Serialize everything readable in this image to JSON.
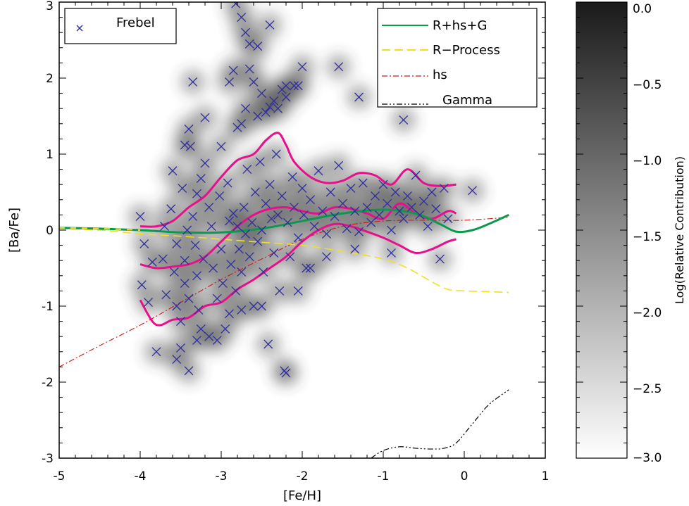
{
  "chart_data": {
    "type": "scatter",
    "xlabel": "[Fe/H]",
    "ylabel": "[Ba/Fe]",
    "xlim": [
      -5,
      1
    ],
    "ylim": [
      -3,
      3
    ],
    "x_ticks": [
      "-5",
      "-4",
      "-3",
      "-2",
      "-1",
      "0",
      "1"
    ],
    "y_ticks": [
      "-3",
      "-2",
      "-1",
      "0",
      "1",
      "2",
      "3"
    ],
    "grid": false,
    "legend_left": {
      "placement": "top-left",
      "entries": [
        "Frebel"
      ]
    },
    "legend_right": {
      "placement": "top-right",
      "entries": [
        "R+hs+G",
        "R−Process",
        "hs",
        "Gamma"
      ]
    },
    "colors": {
      "frebel": "#2e2e9e",
      "r_hs_g": "#0a9a4e",
      "r_process": "#f0e020",
      "hs": "#d01818",
      "gamma": "#000000",
      "envelope": "#e8108a"
    },
    "colorbar": {
      "label": "Log(Relative Contribution)",
      "range": [
        -3.0,
        0.0
      ],
      "ticks": [
        "0.0",
        "−0.5",
        "−1.0",
        "−1.5",
        "−2.0",
        "−2.5",
        "−3.0"
      ]
    },
    "series": [
      {
        "name": "Frebel",
        "style": "x-markers",
        "points": [
          [
            -4.0,
            0.18
          ],
          [
            -3.95,
            -0.18
          ],
          [
            -3.98,
            -0.72
          ],
          [
            -3.9,
            -0.95
          ],
          [
            -3.85,
            -0.42
          ],
          [
            -3.7,
            0.05
          ],
          [
            -3.72,
            -0.38
          ],
          [
            -3.68,
            -0.85
          ],
          [
            -3.6,
            0.78
          ],
          [
            -3.62,
            0.28
          ],
          [
            -3.55,
            -0.18
          ],
          [
            -3.58,
            -0.55
          ],
          [
            -3.55,
            -1.0
          ],
          [
            -3.5,
            -1.2
          ],
          [
            -3.45,
            -0.7
          ],
          [
            -3.48,
            0.55
          ],
          [
            -3.42,
            0.0
          ],
          [
            -3.45,
            -0.4
          ],
          [
            -3.4,
            -0.9
          ],
          [
            -3.4,
            1.33
          ],
          [
            -3.45,
            1.12
          ],
          [
            -3.38,
            1.1
          ],
          [
            -3.35,
            0.18
          ],
          [
            -3.32,
            -0.2
          ],
          [
            -3.3,
            -0.6
          ],
          [
            -3.28,
            -1.05
          ],
          [
            -3.25,
            -1.3
          ],
          [
            -3.3,
            0.48
          ],
          [
            -3.25,
            0.68
          ],
          [
            -3.22,
            -0.38
          ],
          [
            -3.2,
            0.88
          ],
          [
            -3.15,
            0.3
          ],
          [
            -3.12,
            0.05
          ],
          [
            -3.1,
            -0.5
          ],
          [
            -3.05,
            -0.9
          ],
          [
            -3.0,
            1.1
          ],
          [
            -3.02,
            0.45
          ],
          [
            -3.0,
            -0.25
          ],
          [
            -2.98,
            -0.7
          ],
          [
            -2.95,
            -1.3
          ],
          [
            -2.92,
            0.62
          ],
          [
            -2.9,
            0.12
          ],
          [
            -2.88,
            -0.45
          ],
          [
            -2.85,
            0.22
          ],
          [
            -2.82,
            -0.8
          ],
          [
            -2.8,
            0.05
          ],
          [
            -2.78,
            -0.25
          ],
          [
            -2.75,
            -0.55
          ],
          [
            -2.72,
            0.3
          ],
          [
            -2.7,
            -0.05
          ],
          [
            -2.68,
            0.8
          ],
          [
            -2.65,
            -0.35
          ],
          [
            -2.62,
            0.1
          ],
          [
            -2.6,
            -1.0
          ],
          [
            -2.58,
            0.5
          ],
          [
            -2.55,
            -0.15
          ],
          [
            -2.52,
            0.9
          ],
          [
            -2.5,
            0.0
          ],
          [
            -2.48,
            -0.55
          ],
          [
            -2.45,
            0.35
          ],
          [
            -2.42,
            -1.5
          ],
          [
            -2.4,
            0.6
          ],
          [
            -2.38,
            0.15
          ],
          [
            -2.35,
            -0.3
          ],
          [
            -2.32,
            1.0
          ],
          [
            -2.3,
            0.2
          ],
          [
            -2.28,
            -0.8
          ],
          [
            -2.25,
            0.45
          ],
          [
            -2.22,
            -1.85
          ],
          [
            -2.2,
            -1.88
          ],
          [
            -2.18,
            0.1
          ],
          [
            -2.15,
            -0.35
          ],
          [
            -2.12,
            0.7
          ],
          [
            -2.1,
            0.3
          ],
          [
            -2.05,
            -0.1
          ],
          [
            -2.0,
            0.55
          ],
          [
            -1.98,
            0.2
          ],
          [
            -1.95,
            -0.5
          ],
          [
            -1.9,
            0.4
          ],
          [
            -1.85,
            0.05
          ],
          [
            -1.8,
            0.78
          ],
          [
            -1.75,
            0.25
          ],
          [
            -1.7,
            -0.05
          ],
          [
            -1.65,
            0.5
          ],
          [
            -1.6,
            0.18
          ],
          [
            -1.55,
            0.85
          ],
          [
            -1.5,
            0.35
          ],
          [
            -1.45,
            0.02
          ],
          [
            -1.4,
            0.55
          ],
          [
            -1.35,
            0.25
          ],
          [
            -1.3,
            -0.02
          ],
          [
            -1.25,
            0.62
          ],
          [
            -1.2,
            0.3
          ],
          [
            -1.15,
            0.1
          ],
          [
            -1.1,
            0.45
          ],
          [
            -1.05,
            0.2
          ],
          [
            -1.0,
            0.6
          ],
          [
            -0.95,
            0.35
          ],
          [
            -0.9,
            0.0
          ],
          [
            -0.85,
            0.5
          ],
          [
            -0.8,
            0.25
          ],
          [
            -0.75,
            0.15
          ],
          [
            -0.7,
            0.45
          ],
          [
            -0.65,
            0.3
          ],
          [
            -0.6,
            0.72
          ],
          [
            -0.55,
            0.2
          ],
          [
            -0.5,
            0.38
          ],
          [
            -0.45,
            0.05
          ],
          [
            -0.4,
            0.5
          ],
          [
            -0.35,
            0.28
          ],
          [
            -0.3,
            -0.38
          ],
          [
            -0.25,
            0.55
          ],
          [
            -0.2,
            0.15
          ],
          [
            0.1,
            0.52
          ],
          [
            -2.82,
            2.98
          ],
          [
            -2.75,
            2.8
          ],
          [
            -2.65,
            2.45
          ],
          [
            -2.55,
            2.42
          ],
          [
            -2.4,
            2.7
          ],
          [
            -2.7,
            2.6
          ],
          [
            -2.85,
            2.1
          ],
          [
            -2.6,
            1.95
          ],
          [
            -2.5,
            1.8
          ],
          [
            -2.35,
            1.7
          ],
          [
            -2.25,
            1.85
          ],
          [
            -2.3,
            1.6
          ],
          [
            -2.45,
            1.55
          ],
          [
            -2.55,
            1.5
          ],
          [
            -2.7,
            1.6
          ],
          [
            -2.8,
            1.35
          ],
          [
            -2.75,
            1.4
          ],
          [
            -2.2,
            1.75
          ],
          [
            -2.0,
            2.15
          ],
          [
            -2.1,
            1.9
          ],
          [
            -1.3,
            1.75
          ],
          [
            -1.55,
            2.15
          ],
          [
            -0.75,
            1.45
          ],
          [
            -3.35,
            1.95
          ],
          [
            -3.2,
            1.48
          ],
          [
            -2.9,
            1.95
          ],
          [
            -2.65,
            2.12
          ],
          [
            -2.4,
            1.62
          ],
          [
            -2.2,
            1.9
          ],
          [
            -2.05,
            1.9
          ],
          [
            -3.8,
            -1.6
          ],
          [
            -3.55,
            -1.7
          ],
          [
            -3.5,
            -1.55
          ],
          [
            -3.4,
            -1.85
          ],
          [
            -3.3,
            -1.45
          ],
          [
            -3.15,
            -1.4
          ],
          [
            -3.05,
            -1.45
          ],
          [
            -2.9,
            -1.1
          ],
          [
            -2.75,
            -1.05
          ],
          [
            -2.5,
            -1.0
          ],
          [
            -1.9,
            -0.5
          ],
          [
            -2.05,
            -0.8
          ],
          [
            -1.7,
            -0.35
          ],
          [
            -1.35,
            -0.25
          ],
          [
            -0.9,
            -0.3
          ]
        ]
      },
      {
        "name": "R+hs+G",
        "style": "solid",
        "x": [
          -5.0,
          -4.5,
          -4.0,
          -3.5,
          -3.0,
          -2.5,
          -2.0,
          -1.5,
          -1.0,
          -0.6,
          -0.3,
          -0.1,
          0.1,
          0.3,
          0.55
        ],
        "y": [
          0.03,
          0.02,
          0.0,
          -0.03,
          -0.03,
          0.02,
          0.12,
          0.22,
          0.27,
          0.22,
          0.08,
          -0.02,
          0.0,
          0.08,
          0.2
        ]
      },
      {
        "name": "R−Process",
        "style": "dashed",
        "x": [
          -5.0,
          -4.5,
          -4.0,
          -3.5,
          -3.0,
          -2.5,
          -2.0,
          -1.5,
          -1.0,
          -0.7,
          -0.4,
          -0.2,
          0.0,
          0.3,
          0.55
        ],
        "y": [
          0.02,
          0.0,
          -0.05,
          -0.08,
          -0.12,
          -0.16,
          -0.2,
          -0.28,
          -0.38,
          -0.5,
          -0.68,
          -0.78,
          -0.8,
          -0.81,
          -0.82
        ]
      },
      {
        "name": "hs",
        "style": "dash-dot",
        "x": [
          -5.0,
          -4.5,
          -4.0,
          -3.5,
          -3.0,
          -2.5,
          -2.0,
          -1.5,
          -1.0,
          -0.5,
          0.0,
          0.55
        ],
        "y": [
          -1.8,
          -1.52,
          -1.25,
          -0.95,
          -0.65,
          -0.38,
          -0.12,
          0.05,
          0.12,
          0.13,
          0.13,
          0.17
        ]
      },
      {
        "name": "Gamma",
        "style": "dash-dot-dot",
        "x": [
          -1.15,
          -1.0,
          -0.8,
          -0.6,
          -0.4,
          -0.25,
          -0.1,
          0.1,
          0.3,
          0.55
        ],
        "y": [
          -3.0,
          -2.9,
          -2.85,
          -2.87,
          -2.88,
          -2.87,
          -2.8,
          -2.55,
          -2.3,
          -2.1
        ]
      },
      {
        "name": "",
        "style": "envelope-upper",
        "x": [
          -4.0,
          -3.8,
          -3.6,
          -3.4,
          -3.2,
          -3.0,
          -2.8,
          -2.6,
          -2.45,
          -2.3,
          -2.2,
          -2.1,
          -1.9,
          -1.7,
          -1.5,
          -1.3,
          -1.1,
          -0.9,
          -0.7,
          -0.5,
          -0.3,
          -0.1
        ],
        "y": [
          0.05,
          0.05,
          0.12,
          0.3,
          0.45,
          0.7,
          0.92,
          1.0,
          1.18,
          1.28,
          1.12,
          0.9,
          0.7,
          0.62,
          0.65,
          0.75,
          0.72,
          0.6,
          0.8,
          0.62,
          0.58,
          0.6
        ]
      },
      {
        "name": "",
        "style": "envelope-middle",
        "x": [
          -4.0,
          -3.8,
          -3.6,
          -3.4,
          -3.2,
          -3.0,
          -2.8,
          -2.6,
          -2.4,
          -2.2,
          -2.0,
          -1.8,
          -1.6,
          -1.4,
          -1.2,
          -1.0,
          -0.8,
          -0.6,
          -0.4,
          -0.2,
          -0.1
        ],
        "y": [
          -0.45,
          -0.5,
          -0.48,
          -0.45,
          -0.35,
          -0.15,
          0.05,
          0.2,
          0.28,
          0.3,
          0.25,
          0.22,
          0.3,
          0.28,
          0.22,
          0.15,
          0.35,
          0.22,
          0.15,
          0.25,
          0.22
        ]
      },
      {
        "name": "",
        "style": "envelope-lower",
        "x": [
          -4.0,
          -3.85,
          -3.75,
          -3.6,
          -3.4,
          -3.2,
          -3.0,
          -2.8,
          -2.6,
          -2.4,
          -2.2,
          -2.0,
          -1.8,
          -1.6,
          -1.4,
          -1.2,
          -1.0,
          -0.8,
          -0.6,
          -0.4,
          -0.2,
          -0.1
        ],
        "y": [
          -0.92,
          -1.2,
          -1.25,
          -1.18,
          -1.15,
          -1.0,
          -0.95,
          -0.78,
          -0.65,
          -0.5,
          -0.35,
          -0.15,
          0.0,
          0.08,
          0.05,
          -0.02,
          -0.1,
          -0.2,
          -0.3,
          -0.25,
          -0.15,
          -0.12
        ]
      }
    ]
  }
}
